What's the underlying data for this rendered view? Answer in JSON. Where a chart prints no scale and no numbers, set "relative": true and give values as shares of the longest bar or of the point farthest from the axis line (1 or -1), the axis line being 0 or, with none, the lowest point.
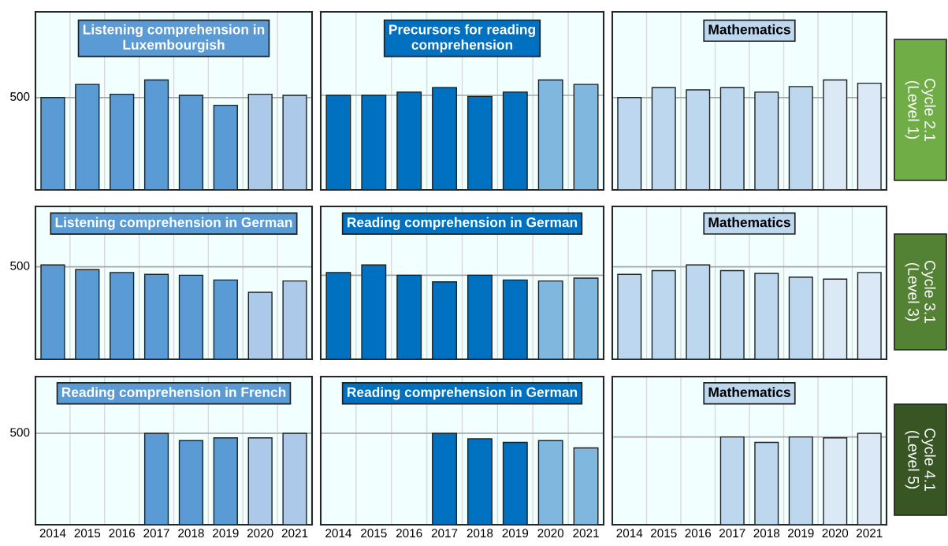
{
  "chart_data": [
    {
      "type": "bar",
      "title": "Listening comprehension in\nLuxembourgish",
      "categories": [
        "2014",
        "2015",
        "2016",
        "2017",
        "2018",
        "2019",
        "2020",
        "2021"
      ],
      "values": [
        0.84,
        0.96,
        0.87,
        1,
        0.86,
        0.77,
        0.87,
        0.86
      ],
      "colors": [
        "#5b9bd5",
        "#5b9bd5",
        "#5b9bd5",
        "#5b9bd5",
        "#5b9bd5",
        "#5b9bd5",
        "#acc9ea",
        "#acc9ea"
      ],
      "relative": true,
      "ref_lines": [
        {
          "axis": "y",
          "value": 0.84,
          "label": null,
          "color": "#a6a6a6"
        }
      ],
      "grid": "x",
      "tick_labels": false,
      "annotations": [
        "500"
      ]
    },
    {
      "type": "bar",
      "title": "Precursors for reading\ncomprehension",
      "categories": [
        "2014",
        "2015",
        "2016",
        "2017",
        "2018",
        "2019",
        "2020",
        "2021"
      ],
      "values": [
        0.86,
        0.86,
        0.89,
        0.93,
        0.85,
        0.89,
        1,
        0.96
      ],
      "colors": [
        "#0070c0",
        "#0070c0",
        "#0070c0",
        "#0070c0",
        "#0070c0",
        "#0070c0",
        "#80b7df",
        "#80b7df"
      ],
      "relative": true,
      "ref_lines": [
        {
          "axis": "y",
          "value": 0.86,
          "label": null,
          "color": "#a6a6a6"
        }
      ],
      "grid": "x",
      "tick_labels": false
    },
    {
      "type": "bar",
      "title": "Mathematics",
      "categories": [
        "2014",
        "2015",
        "2016",
        "2017",
        "2018",
        "2019",
        "2020",
        "2021"
      ],
      "values": [
        0.84,
        0.93,
        0.91,
        0.93,
        0.89,
        0.94,
        1,
        0.97
      ],
      "colors": [
        "#bdd7ee",
        "#bdd7ee",
        "#bdd7ee",
        "#bdd7ee",
        "#bdd7ee",
        "#bdd7ee",
        "#dbe9f6",
        "#dbe9f6"
      ],
      "relative": true,
      "ref_lines": [
        {
          "axis": "y",
          "value": 0.84,
          "label": null,
          "color": "#a6a6a6"
        }
      ],
      "grid": "x",
      "tick_labels": false,
      "annotations": [
        "Cycle 2.1\n(Level 1)"
      ]
    },
    {
      "type": "bar",
      "title": "Listening comprehension in German",
      "categories": [
        "2014",
        "2015",
        "2016",
        "2017",
        "2018",
        "2019",
        "2020",
        "2021"
      ],
      "values": [
        1,
        0.95,
        0.92,
        0.9,
        0.89,
        0.84,
        0.71,
        0.83
      ],
      "colors": [
        "#5b9bd5",
        "#5b9bd5",
        "#5b9bd5",
        "#5b9bd5",
        "#5b9bd5",
        "#5b9bd5",
        "#acc9ea",
        "#acc9ea"
      ],
      "relative": true,
      "ref_lines": [
        {
          "axis": "y",
          "value": 0.98,
          "label": null,
          "color": "#a6a6a6"
        }
      ],
      "grid": "x",
      "tick_labels": false,
      "annotations": [
        "500"
      ]
    },
    {
      "type": "bar",
      "title": "Reading comprehension in German",
      "categories": [
        "2014",
        "2015",
        "2016",
        "2017",
        "2018",
        "2019",
        "2020",
        "2021"
      ],
      "values": [
        0.92,
        1,
        0.89,
        0.82,
        0.89,
        0.84,
        0.83,
        0.86
      ],
      "colors": [
        "#0070c0",
        "#0070c0",
        "#0070c0",
        "#0070c0",
        "#0070c0",
        "#0070c0",
        "#80b7df",
        "#80b7df"
      ],
      "relative": true,
      "ref_lines": [
        {
          "axis": "y",
          "value": 0.89,
          "label": null,
          "color": "#a6a6a6"
        }
      ],
      "grid": "x",
      "tick_labels": false
    },
    {
      "type": "bar",
      "title": "Mathematics",
      "categories": [
        "2014",
        "2015",
        "2016",
        "2017",
        "2018",
        "2019",
        "2020",
        "2021"
      ],
      "values": [
        0.9,
        0.94,
        1,
        0.94,
        0.91,
        0.87,
        0.85,
        0.92
      ],
      "colors": [
        "#bdd7ee",
        "#bdd7ee",
        "#bdd7ee",
        "#bdd7ee",
        "#bdd7ee",
        "#bdd7ee",
        "#dbe9f6",
        "#dbe9f6"
      ],
      "relative": true,
      "ref_lines": [
        {
          "axis": "y",
          "value": 0.98,
          "label": null,
          "color": "#a6a6a6"
        }
      ],
      "grid": "x",
      "tick_labels": false,
      "annotations": [
        "Cycle 3.1\n(Level 3)"
      ]
    },
    {
      "type": "bar",
      "title": "Reading comprehension in French",
      "categories": [
        "2014",
        "2015",
        "2016",
        "2017",
        "2018",
        "2019",
        "2020",
        "2021"
      ],
      "values": [
        null,
        null,
        null,
        1,
        0.92,
        0.95,
        0.95,
        1
      ],
      "colors": [
        "#5b9bd5",
        "#5b9bd5",
        "#5b9bd5",
        "#5b9bd5",
        "#5b9bd5",
        "#5b9bd5",
        "#acc9ea",
        "#acc9ea"
      ],
      "relative": true,
      "ref_lines": [
        {
          "axis": "y",
          "value": 1,
          "label": null,
          "color": "#a6a6a6"
        }
      ],
      "grid": "x",
      "tick_labels": "x",
      "annotations": [
        "500"
      ]
    },
    {
      "type": "bar",
      "title": "Reading comprehension in German",
      "categories": [
        "2014",
        "2015",
        "2016",
        "2017",
        "2018",
        "2019",
        "2020",
        "2021"
      ],
      "values": [
        null,
        null,
        null,
        1,
        0.94,
        0.9,
        0.92,
        0.84
      ],
      "colors": [
        "#0070c0",
        "#0070c0",
        "#0070c0",
        "#0070c0",
        "#0070c0",
        "#0070c0",
        "#80b7df",
        "#80b7df"
      ],
      "relative": true,
      "ref_lines": [
        {
          "axis": "y",
          "value": 1,
          "label": null,
          "color": "#a6a6a6"
        }
      ],
      "grid": "x",
      "tick_labels": "x"
    },
    {
      "type": "bar",
      "title": "Mathematics",
      "categories": [
        "2014",
        "2015",
        "2016",
        "2017",
        "2018",
        "2019",
        "2020",
        "2021"
      ],
      "values": [
        null,
        null,
        null,
        0.96,
        0.9,
        0.96,
        0.95,
        1
      ],
      "colors": [
        "#bdd7ee",
        "#bdd7ee",
        "#bdd7ee",
        "#bdd7ee",
        "#bdd7ee",
        "#bdd7ee",
        "#dbe9f6",
        "#dbe9f6"
      ],
      "relative": true,
      "ref_lines": [
        {
          "axis": "y",
          "value": 0.96,
          "label": null,
          "color": "#a6a6a6"
        }
      ],
      "grid": "x",
      "tick_labels": "x",
      "annotations": [
        "Cycle 4.1\n(Level 5)"
      ]
    }
  ]
}
